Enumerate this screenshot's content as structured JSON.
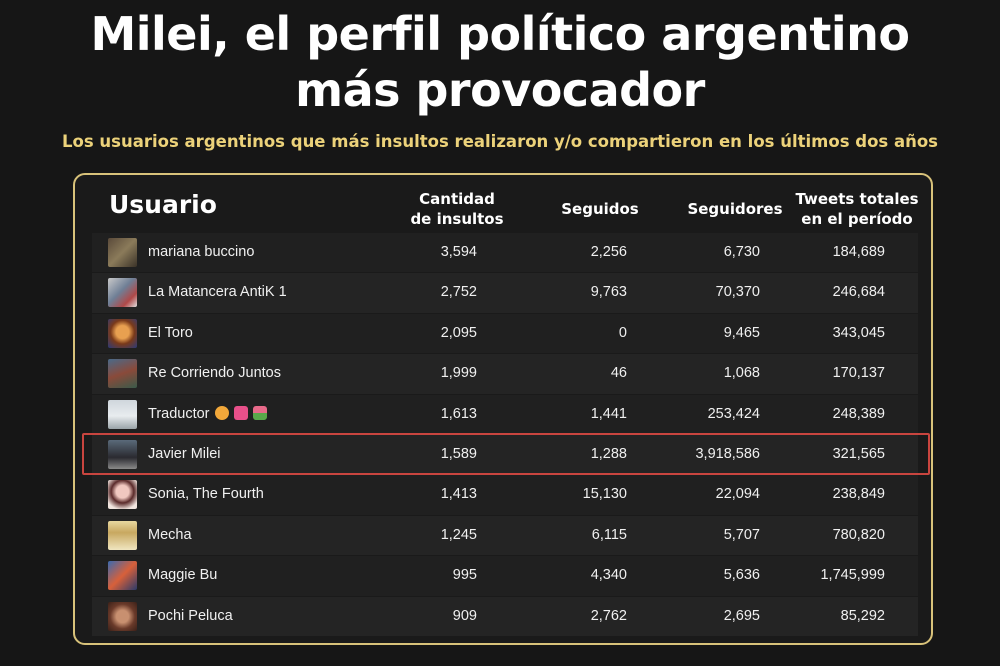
{
  "title_line1": "Milei, el perfil político argentino",
  "title_line2": "más provocador",
  "subtitle": "Los usuarios argentinos que más insultos realizaron y/o compartieron en los últimos dos años",
  "table": {
    "headers": {
      "user": "Usuario",
      "insults": "Cantidad\nde insultos",
      "following": "Seguidos",
      "followers": "Seguidores",
      "tweets": "Tweets totales\nen el período"
    },
    "rows": [
      {
        "name": "mariana buccino",
        "insults": "3,594",
        "following": "2,256",
        "followers": "6,730",
        "tweets": "184,689"
      },
      {
        "name": "La Matancera AntiK 1",
        "insults": "2,752",
        "following": "9,763",
        "followers": "70,370",
        "tweets": "246,684"
      },
      {
        "name": "El Toro",
        "insults": "2,095",
        "following": "0",
        "followers": "9,465",
        "tweets": "343,045"
      },
      {
        "name": "Re Corriendo Juntos",
        "insults": "1,999",
        "following": "46",
        "followers": "1,068",
        "tweets": "170,137"
      },
      {
        "name": "Traductor",
        "insults": "1,613",
        "following": "1,441",
        "followers": "253,424",
        "tweets": "248,389"
      },
      {
        "name": "Javier Milei",
        "insults": "1,589",
        "following": "1,288",
        "followers": "3,918,586",
        "tweets": "321,565"
      },
      {
        "name": "Sonia, The Fourth",
        "insults": "1,413",
        "following": "15,130",
        "followers": "22,094",
        "tweets": "238,849"
      },
      {
        "name": "Mecha",
        "insults": "1,245",
        "following": "6,115",
        "followers": "5,707",
        "tweets": "780,820"
      },
      {
        "name": "Maggie Bu",
        "insults": "995",
        "following": "4,340",
        "followers": "5,636",
        "tweets": "1,745,999"
      },
      {
        "name": "Pochi Peluca",
        "insults": "909",
        "following": "2,762",
        "followers": "2,695",
        "tweets": "85,292"
      }
    ],
    "highlighted_row": "Javier Milei",
    "highlight_color": "#c9453f",
    "accent_color": "#ecd27a"
  }
}
